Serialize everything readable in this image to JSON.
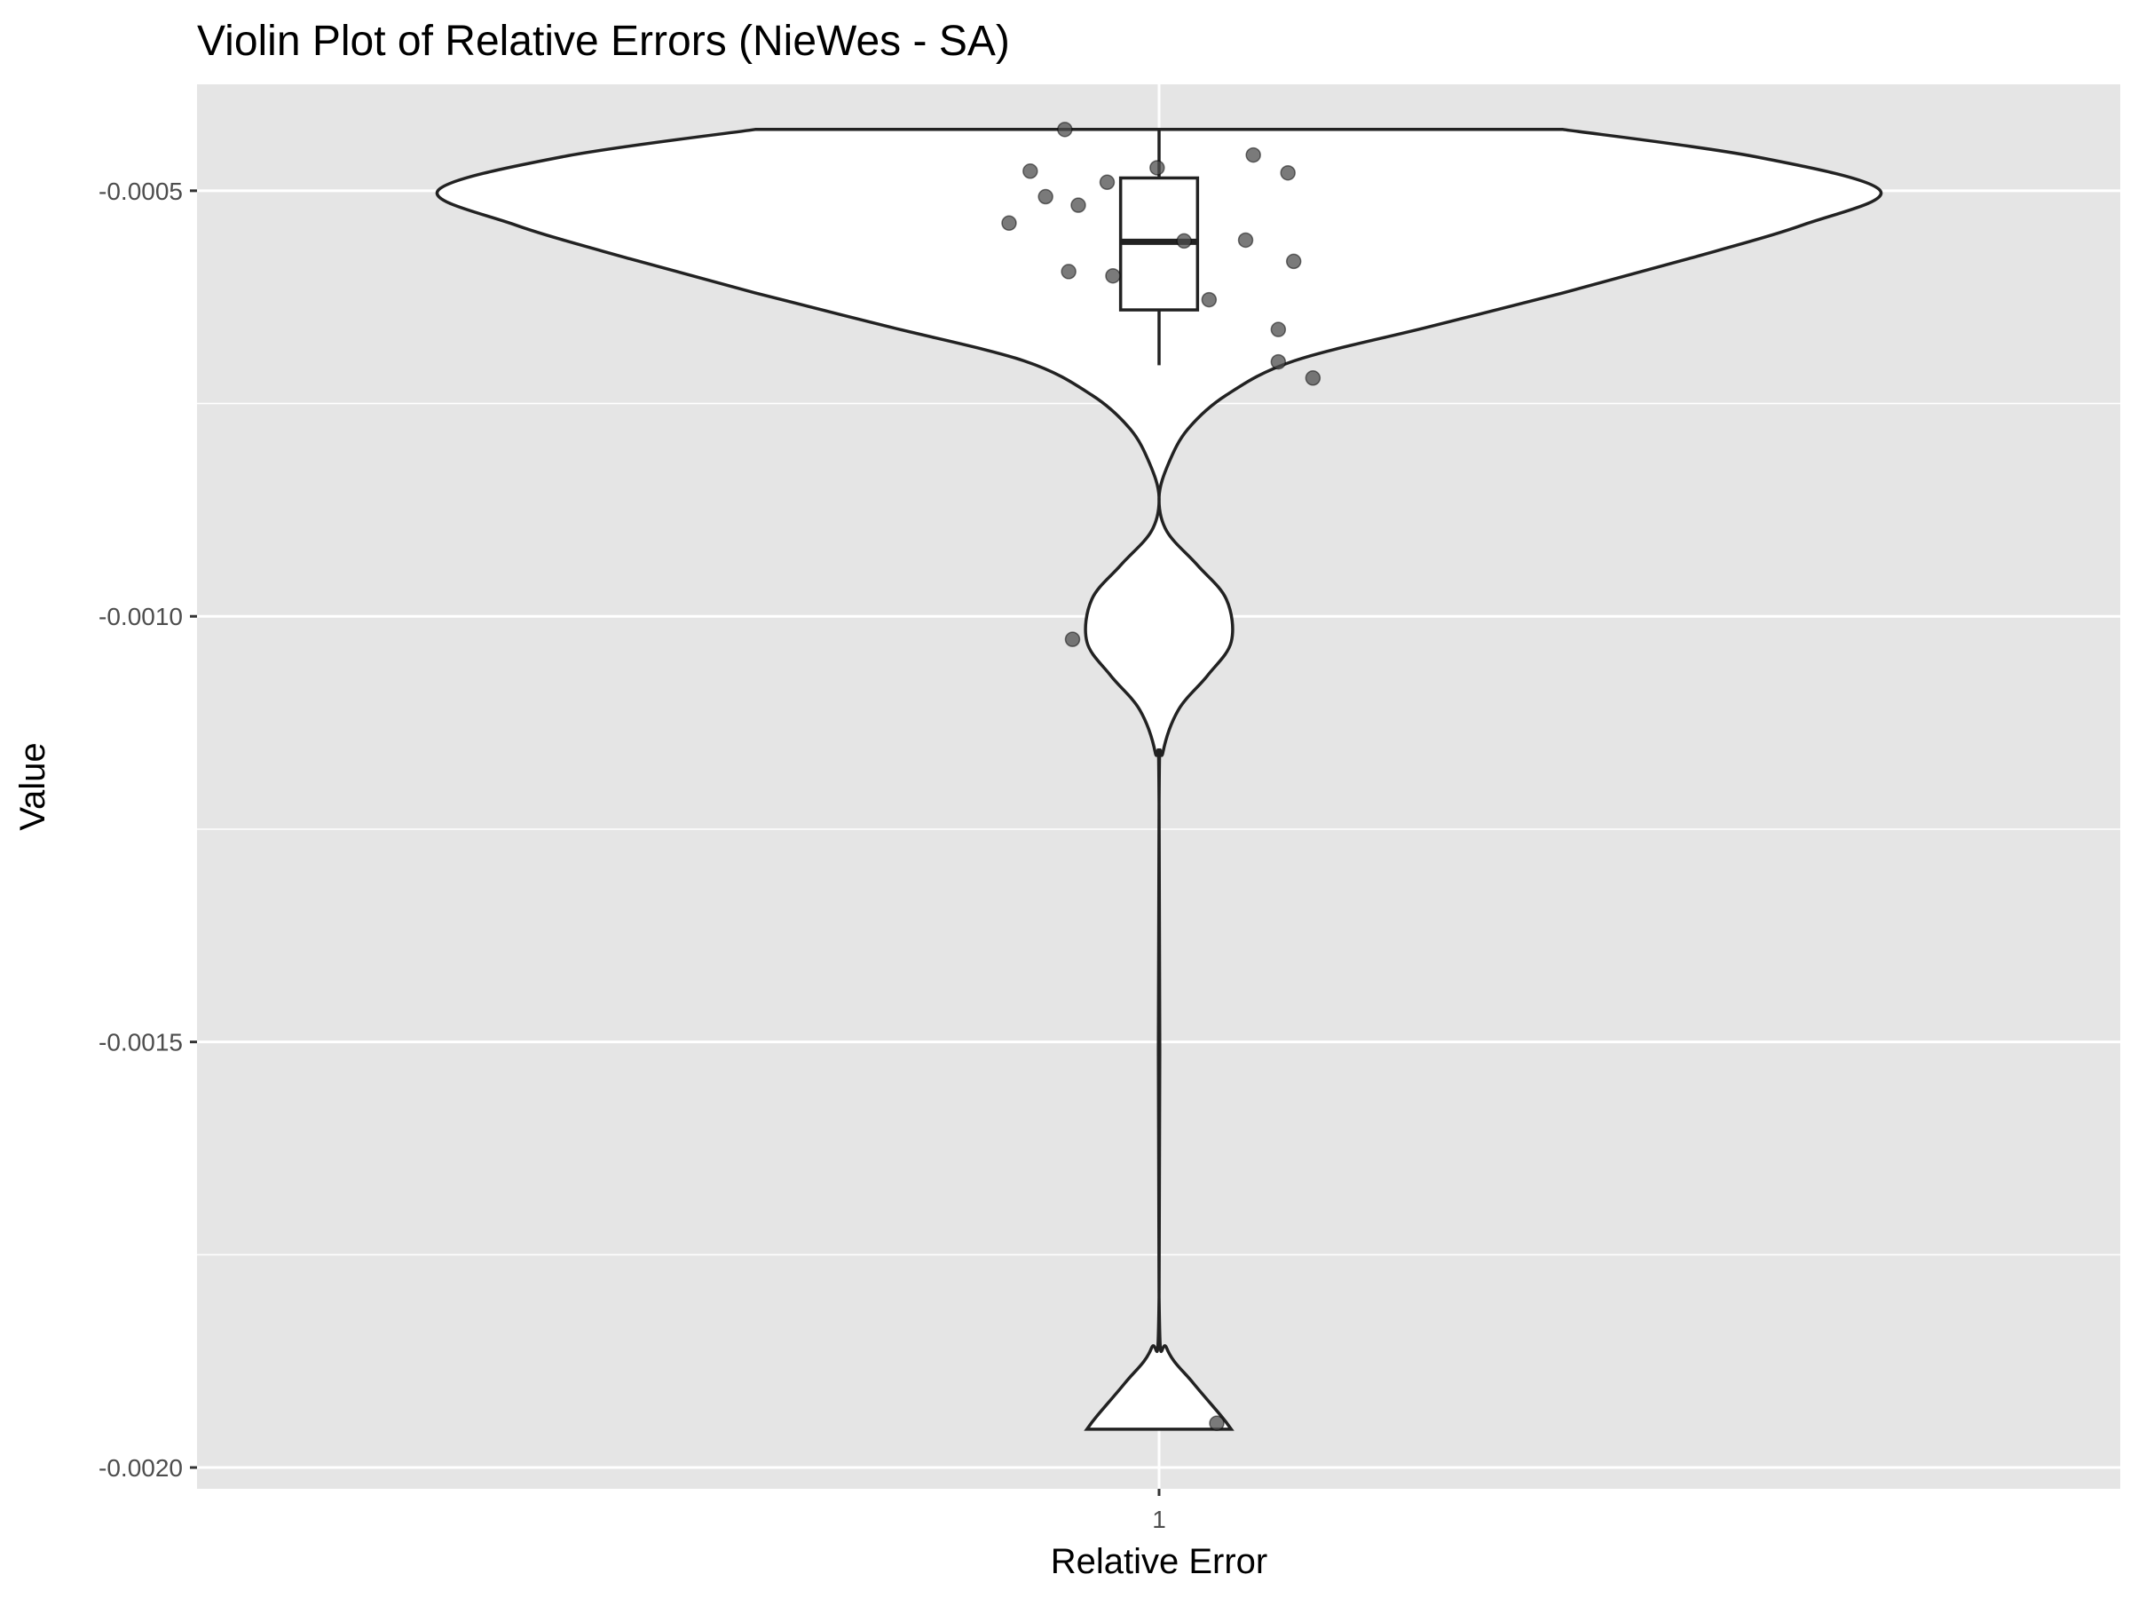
{
  "chart_data": {
    "type": "violin",
    "title": "Violin Plot of Relative Errors (NieWes - SA)",
    "xlabel": "Relative Error",
    "ylabel": "Value",
    "categories": [
      "1"
    ],
    "ylim": [
      -0.002025,
      -0.000375
    ],
    "yticks": [
      {
        "value": -0.0005,
        "label": "-0.0005"
      },
      {
        "value": -0.001,
        "label": "-0.0010"
      },
      {
        "value": -0.0015,
        "label": "-0.0015"
      },
      {
        "value": -0.002,
        "label": "-0.0020"
      }
    ],
    "grid": true,
    "colors": {
      "panel": "#e5e5e5",
      "grid": "#ffffff",
      "violin_fill": "#ffffff",
      "outline": "#222222",
      "point": "#4d4d4d"
    },
    "violin": {
      "density_profile": [
        {
          "y": -0.000428,
          "width": 0.42
        },
        {
          "y": -0.00046,
          "width": 0.62
        },
        {
          "y": -0.0005,
          "width": 0.75
        },
        {
          "y": -0.00054,
          "width": 0.67
        },
        {
          "y": -0.00058,
          "width": 0.55
        },
        {
          "y": -0.00062,
          "width": 0.42
        },
        {
          "y": -0.00066,
          "width": 0.28
        },
        {
          "y": -0.0007,
          "width": 0.14
        },
        {
          "y": -0.00074,
          "width": 0.07
        },
        {
          "y": -0.00078,
          "width": 0.03
        },
        {
          "y": -0.00082,
          "width": 0.01
        },
        {
          "y": -0.00086,
          "width": 0.0
        },
        {
          "y": -0.0009,
          "width": 0.008
        },
        {
          "y": -0.00094,
          "width": 0.04
        },
        {
          "y": -0.00098,
          "width": 0.07
        },
        {
          "y": -0.00103,
          "width": 0.075
        },
        {
          "y": -0.00107,
          "width": 0.05
        },
        {
          "y": -0.00111,
          "width": 0.02
        },
        {
          "y": -0.00116,
          "width": 0.004
        },
        {
          "y": -0.00122,
          "width": 0.0
        },
        {
          "y": -0.0018,
          "width": 0.0
        },
        {
          "y": -0.00186,
          "width": 0.008
        },
        {
          "y": -0.0019,
          "width": 0.035
        },
        {
          "y": -0.00194,
          "width": 0.065
        },
        {
          "y": -0.001955,
          "width": 0.075
        }
      ]
    },
    "boxplot": {
      "upper_whisker": -0.000428,
      "q3": -0.000485,
      "median": -0.00056,
      "q1": -0.00064,
      "lower_whisker": -0.000705
    },
    "points": [
      {
        "x": 0.902,
        "y": -0.000428
      },
      {
        "x": 0.866,
        "y": -0.000477
      },
      {
        "x": 0.998,
        "y": -0.000473
      },
      {
        "x": 1.098,
        "y": -0.000458
      },
      {
        "x": 1.134,
        "y": -0.000479
      },
      {
        "x": 0.946,
        "y": -0.00049
      },
      {
        "x": 0.882,
        "y": -0.000507
      },
      {
        "x": 0.916,
        "y": -0.000517
      },
      {
        "x": 0.844,
        "y": -0.000538
      },
      {
        "x": 1.026,
        "y": -0.000559
      },
      {
        "x": 1.09,
        "y": -0.000558
      },
      {
        "x": 1.14,
        "y": -0.000583
      },
      {
        "x": 0.906,
        "y": -0.000595
      },
      {
        "x": 0.952,
        "y": -0.0006
      },
      {
        "x": 1.052,
        "y": -0.000628
      },
      {
        "x": 1.124,
        "y": -0.000663
      },
      {
        "x": 1.124,
        "y": -0.000701
      },
      {
        "x": 1.16,
        "y": -0.00072
      },
      {
        "x": 0.91,
        "y": -0.001027
      },
      {
        "x": 1.06,
        "y": -0.001948
      }
    ]
  }
}
